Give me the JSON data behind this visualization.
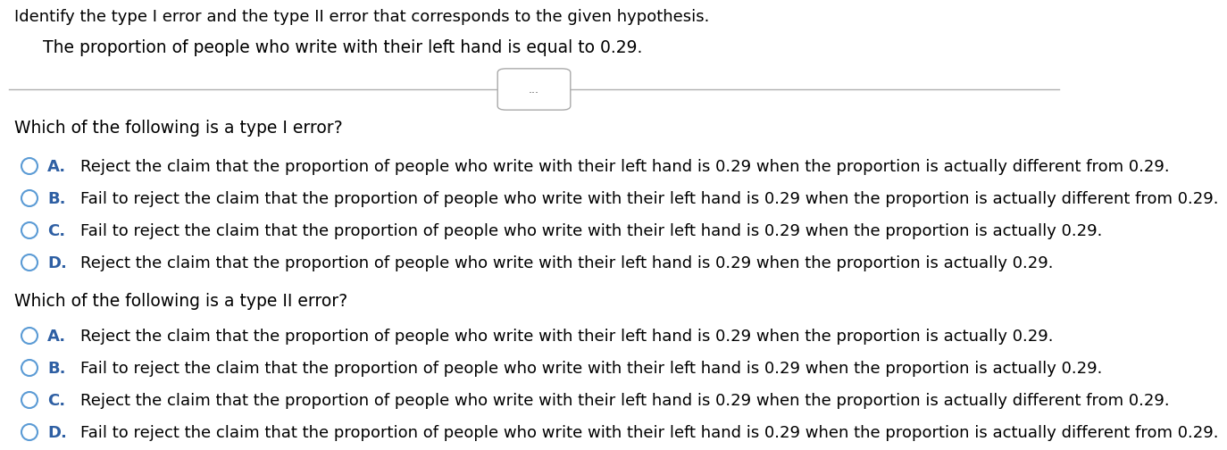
{
  "bg_color": "#ffffff",
  "title_line": "Identify the type I error and the type II error that corresponds to the given hypothesis.",
  "hypothesis": "The proportion of people who write with their left hand is equal to 0.29.",
  "type1_question": "Which of the following is a type I error?",
  "type1_options": [
    {
      "label": "A.",
      "text": "Reject the claim that the proportion of people who write with their left hand is 0.29 when the proportion is actually different from 0.29."
    },
    {
      "label": "B.",
      "text": "Fail to reject the claim that the proportion of people who write with their left hand is 0.29 when the proportion is actually different from 0.29."
    },
    {
      "label": "C.",
      "text": "Fail to reject the claim that the proportion of people who write with their left hand is 0.29 when the proportion is actually 0.29."
    },
    {
      "label": "D.",
      "text": "Reject the claim that the proportion of people who write with their left hand is 0.29 when the proportion is actually 0.29."
    }
  ],
  "type2_question": "Which of the following is a type II error?",
  "type2_options": [
    {
      "label": "A.",
      "text": "Reject the claim that the proportion of people who write with their left hand is 0.29 when the proportion is actually 0.29."
    },
    {
      "label": "B.",
      "text": "Fail to reject the claim that the proportion of people who write with their left hand is 0.29 when the proportion is actually 0.29."
    },
    {
      "label": "C.",
      "text": "Reject the claim that the proportion of people who write with their left hand is 0.29 when the proportion is actually different from 0.29."
    },
    {
      "label": "D.",
      "text": "Fail to reject the claim that the proportion of people who write with their left hand is 0.29 when the proportion is actually different from 0.29."
    }
  ],
  "circle_color": "#5b9bd5",
  "label_color": "#2e5fa3",
  "text_color": "#000000",
  "font_size_title": 13,
  "font_size_hypothesis": 13.5,
  "font_size_question": 13.5,
  "font_size_option": 13,
  "dots_label": "...",
  "line_color": "#b0b0b0"
}
